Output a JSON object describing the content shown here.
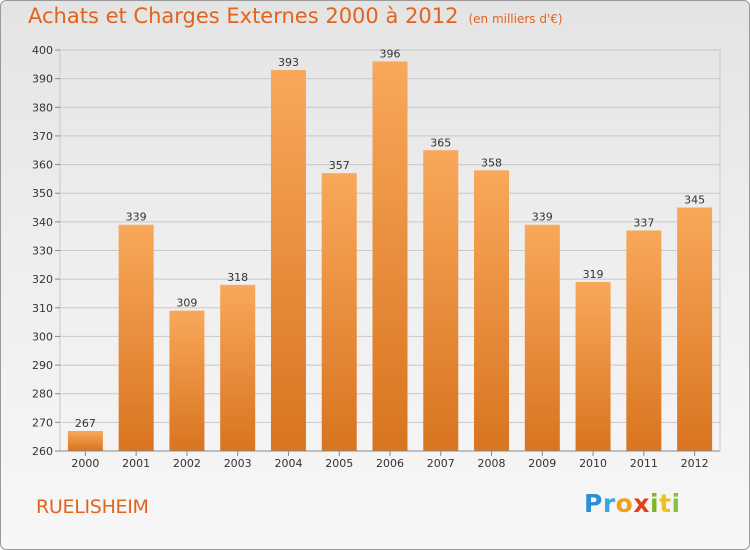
{
  "chart_data": {
    "type": "bar",
    "title": "Achats et Charges Externes 2000 à 2012",
    "subtitle": "(en milliers d'€)",
    "categories": [
      "2000",
      "2001",
      "2002",
      "2003",
      "2004",
      "2005",
      "2006",
      "2007",
      "2008",
      "2009",
      "2010",
      "2011",
      "2012"
    ],
    "values": [
      267,
      339,
      309,
      318,
      393,
      357,
      396,
      365,
      358,
      339,
      319,
      337,
      345
    ],
    "ylim": [
      260,
      400
    ],
    "yticks": [
      260,
      270,
      280,
      290,
      300,
      310,
      320,
      330,
      340,
      350,
      360,
      370,
      380,
      390,
      400
    ],
    "grid": true,
    "data_labels": true,
    "colors": {
      "bar_top": "#f8a85a",
      "bar_bottom": "#d9741f",
      "grid": "#c8c8c8",
      "text": "#e2641c"
    }
  },
  "location": "RUELISHEIM",
  "logo": {
    "letters": [
      "P",
      "r",
      "o",
      "x",
      "i",
      "t",
      "i"
    ],
    "colors": [
      "#2a8fd8",
      "#3aa8e0",
      "#f0a020",
      "#e04020",
      "#7ab828",
      "#f0c020",
      "#8cc040"
    ]
  }
}
